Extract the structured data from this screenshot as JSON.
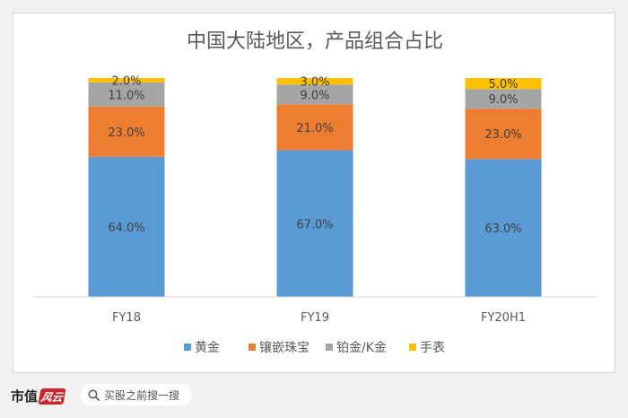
{
  "chart_data": {
    "type": "bar",
    "stacked": true,
    "title": "中国大陆地区，产品组合占比",
    "categories": [
      "FY18",
      "FY19",
      "FY20H1"
    ],
    "series": [
      {
        "name": "黄金",
        "values": [
          64.0,
          67.0,
          63.0
        ],
        "labels": [
          "64.0%",
          "67.0%",
          "63.0%"
        ],
        "color": "#5b9bd5"
      },
      {
        "name": "镶嵌珠宝",
        "values": [
          23.0,
          21.0,
          23.0
        ],
        "labels": [
          "23.0%",
          "21.0%",
          "23.0%"
        ],
        "color": "#ed7d31"
      },
      {
        "name": "铂金/K金",
        "values": [
          11.0,
          9.0,
          9.0
        ],
        "labels": [
          "11.0%",
          "9.0%",
          "9.0%"
        ],
        "color": "#a5a5a5"
      },
      {
        "name": "手表",
        "values": [
          2.0,
          3.0,
          5.0
        ],
        "labels": [
          "2.0%",
          "3.0%",
          "5.0%"
        ],
        "color": "#ffc000"
      }
    ],
    "ylim": [
      0,
      100
    ],
    "grid": false,
    "legend_position": "bottom"
  },
  "footer": {
    "brand": "市值",
    "brand_logo": "风云",
    "search_placeholder": "买股之前搜一搜",
    "search_icon": "search-icon"
  }
}
